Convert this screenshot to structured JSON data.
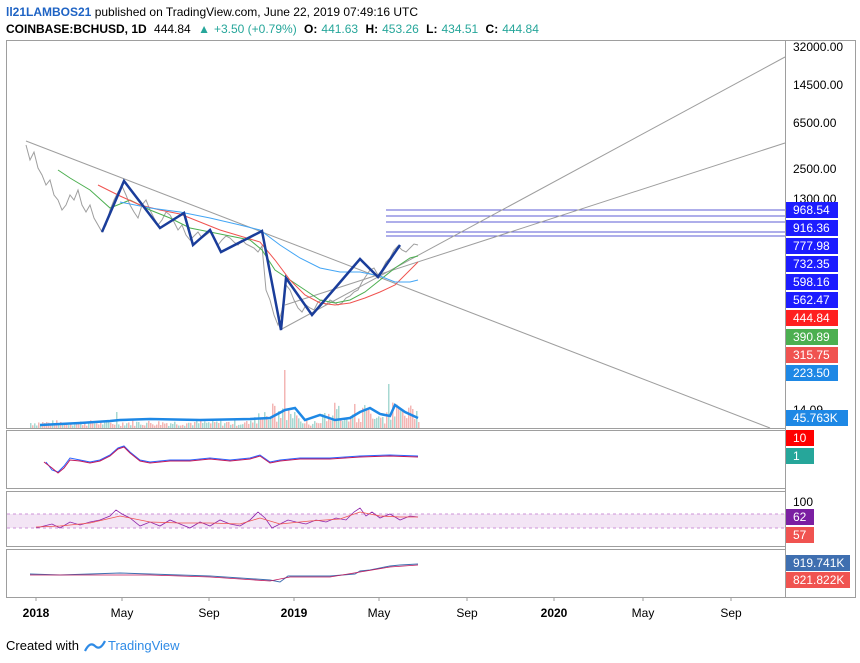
{
  "header": {
    "author": "ll21LAMBOS21",
    "published": "published on TradingView.com, June 22, 2019 07:49:16 UTC",
    "symbol": "COINBASE:BCHUSD, 1D",
    "price": "444.84",
    "change": "+3.50 (+0.79%)",
    "o_label": "O:",
    "o_val": "441.63",
    "h_label": "H:",
    "h_val": "453.26",
    "l_label": "L:",
    "l_val": "434.51",
    "c_label": "C:",
    "c_val": "444.84"
  },
  "price_axis": {
    "ticks": [
      "32000.00",
      "14500.00",
      "6500.00",
      "2500.00",
      "1300.00",
      "223.50"
    ],
    "tags": [
      {
        "text": "968.54",
        "color": "#1c1cff"
      },
      {
        "text": "916.36",
        "color": "#1c1cff"
      },
      {
        "text": "777.98",
        "color": "#1c1cff"
      },
      {
        "text": "732.35",
        "color": "#1c1cff"
      },
      {
        "text": "598.16",
        "color": "#1c1cff"
      },
      {
        "text": "562.47",
        "color": "#1c1cff"
      },
      {
        "text": "444.84",
        "color": "#ff1f1f"
      },
      {
        "text": "390.89",
        "color": "#4caf50"
      },
      {
        "text": "315.75",
        "color": "#f05350"
      },
      {
        "text": "223.50",
        "color": "#1e88e5"
      }
    ],
    "volume_tick": "14.09",
    "volume_tag": {
      "text": "45.763K",
      "color": "#1e88e5"
    }
  },
  "pane2": {
    "tags": [
      {
        "text": "10",
        "color": "#ff0000"
      },
      {
        "text": "1",
        "color": "#26a69a"
      }
    ]
  },
  "pane3": {
    "tick": "100",
    "tags": [
      {
        "text": "62",
        "color": "#7b1fa2"
      },
      {
        "text": "57",
        "color": "#f05350"
      }
    ]
  },
  "pane4": {
    "tags": [
      {
        "text": "919.741K",
        "color": "#3f6fb0"
      },
      {
        "text": "821.822K",
        "color": "#f05350"
      }
    ]
  },
  "time_axis": {
    "labels": [
      {
        "text": "2018",
        "bold": true
      },
      {
        "text": "May",
        "bold": false
      },
      {
        "text": "Sep",
        "bold": false
      },
      {
        "text": "2019",
        "bold": true
      },
      {
        "text": "May",
        "bold": false
      },
      {
        "text": "Sep",
        "bold": false
      },
      {
        "text": "2020",
        "bold": true
      },
      {
        "text": "May",
        "bold": false
      },
      {
        "text": "Sep",
        "bold": false
      }
    ]
  },
  "footer": {
    "created": "Created with",
    "brand": "TradingView"
  }
}
